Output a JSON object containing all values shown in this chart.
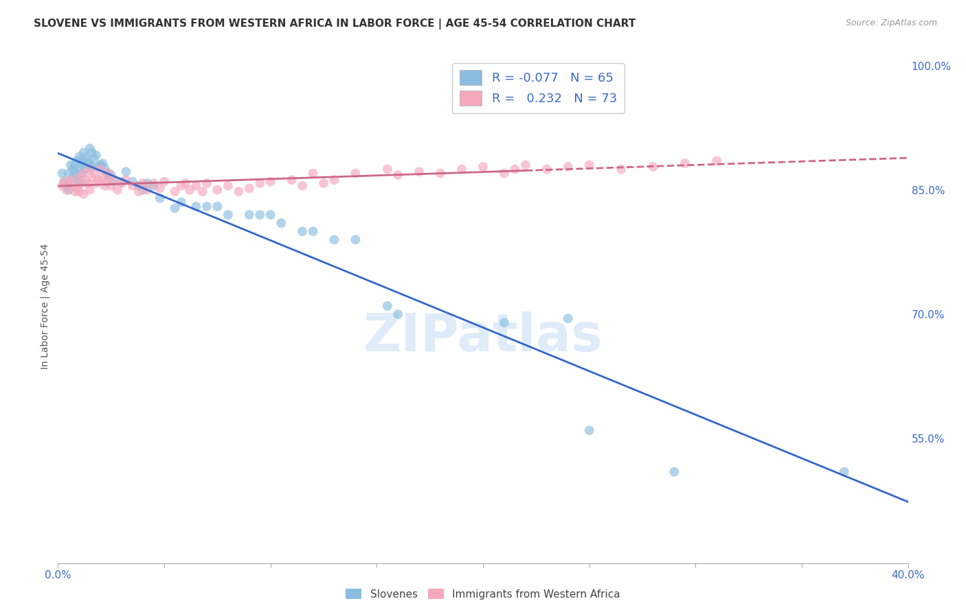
{
  "title": "SLOVENE VS IMMIGRANTS FROM WESTERN AFRICA IN LABOR FORCE | AGE 45-54 CORRELATION CHART",
  "source": "Source: ZipAtlas.com",
  "ylabel": "In Labor Force | Age 45-54",
  "x_min": 0.0,
  "x_max": 0.4,
  "y_min": 0.4,
  "y_max": 1.02,
  "x_ticks": [
    0.0,
    0.05,
    0.1,
    0.15,
    0.2,
    0.25,
    0.3,
    0.35,
    0.4
  ],
  "y_ticks": [
    0.4,
    0.55,
    0.7,
    0.85,
    1.0
  ],
  "y_tick_labels": [
    "",
    "55.0%",
    "70.0%",
    "85.0%",
    "100.0%"
  ],
  "grid_color": "#cccccc",
  "background_color": "#ffffff",
  "blue_color": "#8bbde0",
  "pink_color": "#f5a8bc",
  "blue_line_color": "#3366cc",
  "pink_line_color": "#cc6688",
  "R_blue": -0.077,
  "N_blue": 65,
  "R_pink": 0.232,
  "N_pink": 73,
  "legend_label_blue": "Slovenes",
  "legend_label_pink": "Immigrants from Western Africa",
  "watermark": "ZIPatlas",
  "blue_scatter_x": [
    0.002,
    0.003,
    0.004,
    0.005,
    0.005,
    0.006,
    0.007,
    0.007,
    0.008,
    0.008,
    0.009,
    0.009,
    0.01,
    0.01,
    0.01,
    0.011,
    0.011,
    0.012,
    0.012,
    0.013,
    0.013,
    0.014,
    0.015,
    0.015,
    0.016,
    0.016,
    0.017,
    0.018,
    0.019,
    0.02,
    0.021,
    0.022,
    0.023,
    0.024,
    0.025,
    0.026,
    0.03,
    0.032,
    0.035,
    0.038,
    0.04,
    0.042,
    0.045,
    0.048,
    0.055,
    0.058,
    0.065,
    0.07,
    0.075,
    0.08,
    0.09,
    0.095,
    0.1,
    0.105,
    0.115,
    0.12,
    0.13,
    0.14,
    0.155,
    0.16,
    0.21,
    0.24,
    0.25,
    0.29,
    0.37
  ],
  "blue_scatter_y": [
    0.87,
    0.86,
    0.855,
    0.85,
    0.87,
    0.88,
    0.875,
    0.865,
    0.88,
    0.87,
    0.885,
    0.86,
    0.89,
    0.875,
    0.86,
    0.885,
    0.87,
    0.895,
    0.88,
    0.89,
    0.875,
    0.885,
    0.9,
    0.882,
    0.895,
    0.878,
    0.888,
    0.892,
    0.878,
    0.88,
    0.882,
    0.876,
    0.87,
    0.865,
    0.868,
    0.86,
    0.86,
    0.872,
    0.86,
    0.855,
    0.85,
    0.858,
    0.855,
    0.84,
    0.828,
    0.835,
    0.83,
    0.83,
    0.83,
    0.82,
    0.82,
    0.82,
    0.82,
    0.81,
    0.8,
    0.8,
    0.79,
    0.79,
    0.71,
    0.7,
    0.69,
    0.695,
    0.56,
    0.51,
    0.51
  ],
  "pink_scatter_x": [
    0.002,
    0.003,
    0.004,
    0.005,
    0.006,
    0.007,
    0.008,
    0.009,
    0.01,
    0.01,
    0.011,
    0.012,
    0.012,
    0.013,
    0.014,
    0.015,
    0.015,
    0.016,
    0.017,
    0.018,
    0.019,
    0.02,
    0.021,
    0.022,
    0.023,
    0.024,
    0.025,
    0.026,
    0.028,
    0.03,
    0.032,
    0.035,
    0.038,
    0.04,
    0.042,
    0.045,
    0.048,
    0.05,
    0.055,
    0.058,
    0.06,
    0.062,
    0.065,
    0.068,
    0.07,
    0.075,
    0.08,
    0.085,
    0.09,
    0.095,
    0.1,
    0.11,
    0.115,
    0.12,
    0.125,
    0.13,
    0.14,
    0.155,
    0.16,
    0.17,
    0.18,
    0.19,
    0.2,
    0.21,
    0.215,
    0.22,
    0.23,
    0.24,
    0.25,
    0.265,
    0.28,
    0.295,
    0.31
  ],
  "pink_scatter_y": [
    0.855,
    0.86,
    0.85,
    0.858,
    0.862,
    0.855,
    0.848,
    0.852,
    0.865,
    0.848,
    0.858,
    0.87,
    0.845,
    0.862,
    0.858,
    0.875,
    0.85,
    0.865,
    0.87,
    0.858,
    0.862,
    0.875,
    0.865,
    0.855,
    0.86,
    0.87,
    0.855,
    0.862,
    0.85,
    0.858,
    0.862,
    0.855,
    0.848,
    0.858,
    0.85,
    0.858,
    0.852,
    0.86,
    0.848,
    0.855,
    0.858,
    0.85,
    0.855,
    0.848,
    0.858,
    0.85,
    0.855,
    0.848,
    0.852,
    0.858,
    0.86,
    0.862,
    0.855,
    0.87,
    0.858,
    0.862,
    0.87,
    0.875,
    0.868,
    0.872,
    0.87,
    0.875,
    0.878,
    0.87,
    0.875,
    0.88,
    0.875,
    0.878,
    0.88,
    0.875,
    0.878,
    0.882,
    0.885
  ]
}
